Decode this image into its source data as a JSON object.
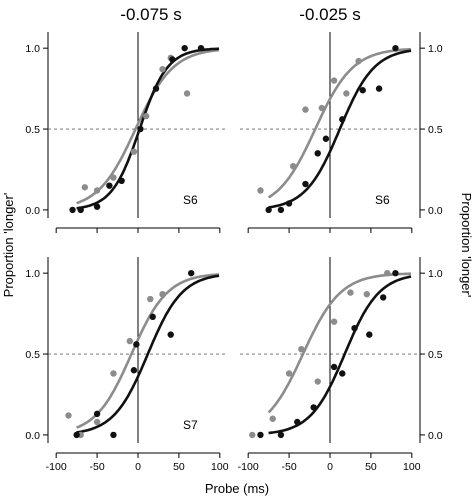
{
  "figure": {
    "column_titles": [
      "-0.075 s",
      "-0.025 s"
    ],
    "xlabel": "Probe (ms)",
    "ylabel_left": "Proportion 'longer'",
    "ylabel_right": "Proportion 'longer'",
    "x_ticks": [
      "-100",
      "-50",
      "0",
      "50",
      "100"
    ],
    "y_ticks": [
      "0.0",
      "0.5",
      "1.0"
    ],
    "colors": {
      "gray_series": "#8c8c8c",
      "black_series": "#111111",
      "reference_line": "#666666"
    }
  },
  "chart_data": [
    {
      "type": "scatter",
      "panel": "top-left",
      "subject": "S6",
      "title": "-0.075 s",
      "xlim": [
        -110,
        110
      ],
      "ylim": [
        -0.05,
        1.1
      ],
      "x_axis_visible": false,
      "reference_lines": {
        "y": 0.5,
        "x": 0
      },
      "series": [
        {
          "color": "gray",
          "fit": {
            "pse": -3,
            "width": 23
          },
          "points": [
            [
              -65,
              0.14
            ],
            [
              -50,
              0.12
            ],
            [
              -30,
              0.2
            ],
            [
              -5,
              0.36
            ],
            [
              10,
              0.58
            ],
            [
              30,
              0.87
            ],
            [
              40,
              0.94
            ],
            [
              60,
              0.72
            ]
          ]
        },
        {
          "color": "black",
          "fit": {
            "pse": 2,
            "width": 17
          },
          "points": [
            [
              -80,
              0.0
            ],
            [
              -70,
              0.0
            ],
            [
              -50,
              0.02
            ],
            [
              -35,
              0.15
            ],
            [
              -20,
              0.18
            ],
            [
              3,
              0.5
            ],
            [
              22,
              0.75
            ],
            [
              42,
              0.93
            ],
            [
              57,
              1.0
            ],
            [
              77,
              1.0
            ]
          ]
        }
      ]
    },
    {
      "type": "scatter",
      "panel": "top-right",
      "subject": "S6",
      "title": "-0.025 s",
      "xlim": [
        -110,
        110
      ],
      "ylim": [
        -0.05,
        1.1
      ],
      "x_axis_visible": false,
      "reference_lines": {
        "y": 0.5,
        "x": 0
      },
      "series": [
        {
          "color": "gray",
          "fit": {
            "pse": -18,
            "width": 23
          },
          "points": [
            [
              -85,
              0.12
            ],
            [
              -45,
              0.27
            ],
            [
              -30,
              0.62
            ],
            [
              -10,
              0.63
            ],
            [
              5,
              0.8
            ],
            [
              20,
              0.72
            ],
            [
              35,
              0.92
            ]
          ]
        },
        {
          "color": "black",
          "fit": {
            "pse": 12,
            "width": 21
          },
          "points": [
            [
              -75,
              0.0
            ],
            [
              -60,
              0.0
            ],
            [
              -50,
              0.04
            ],
            [
              -30,
              0.16
            ],
            [
              -15,
              0.35
            ],
            [
              -5,
              0.44
            ],
            [
              15,
              0.56
            ],
            [
              40,
              0.74
            ],
            [
              60,
              0.75
            ],
            [
              80,
              1.0
            ]
          ]
        }
      ]
    },
    {
      "type": "scatter",
      "panel": "bottom-left",
      "subject": "S7",
      "xlim": [
        -110,
        110
      ],
      "ylim": [
        -0.05,
        1.1
      ],
      "x_axis_visible": true,
      "reference_lines": {
        "y": 0.5,
        "x": 0
      },
      "series": [
        {
          "color": "gray",
          "fit": {
            "pse": -8,
            "width": 22
          },
          "points": [
            [
              -85,
              0.12
            ],
            [
              -70,
              0.0
            ],
            [
              -50,
              0.08
            ],
            [
              -30,
              0.38
            ],
            [
              -10,
              0.58
            ],
            [
              15,
              0.84
            ],
            [
              30,
              0.87
            ]
          ]
        },
        {
          "color": "black",
          "fit": {
            "pse": 12,
            "width": 21
          },
          "points": [
            [
              -75,
              0.0
            ],
            [
              -50,
              0.13
            ],
            [
              -30,
              0.0
            ],
            [
              -5,
              0.4
            ],
            [
              -2,
              0.56
            ],
            [
              18,
              0.73
            ],
            [
              40,
              0.62
            ],
            [
              65,
              1.0
            ]
          ]
        }
      ]
    },
    {
      "type": "scatter",
      "panel": "bottom-right",
      "subject": "",
      "xlim": [
        -110,
        110
      ],
      "ylim": [
        -0.05,
        1.1
      ],
      "x_axis_visible": true,
      "reference_lines": {
        "y": 0.5,
        "x": 0
      },
      "series": [
        {
          "color": "gray",
          "fit": {
            "pse": -33,
            "width": 23
          },
          "points": [
            [
              -95,
              0.0
            ],
            [
              -70,
              0.1
            ],
            [
              -50,
              0.38
            ],
            [
              -35,
              0.53
            ],
            [
              -15,
              0.33
            ],
            [
              5,
              0.7
            ],
            [
              25,
              0.88
            ],
            [
              45,
              0.87
            ],
            [
              70,
              1.0
            ]
          ]
        },
        {
          "color": "black",
          "fit": {
            "pse": 18,
            "width": 21
          },
          "points": [
            [
              -85,
              0.0
            ],
            [
              -60,
              0.0
            ],
            [
              -40,
              0.08
            ],
            [
              -20,
              0.17
            ],
            [
              5,
              0.42
            ],
            [
              15,
              0.38
            ],
            [
              30,
              0.66
            ],
            [
              48,
              0.62
            ],
            [
              65,
              0.85
            ],
            [
              80,
              1.0
            ]
          ]
        }
      ]
    }
  ]
}
